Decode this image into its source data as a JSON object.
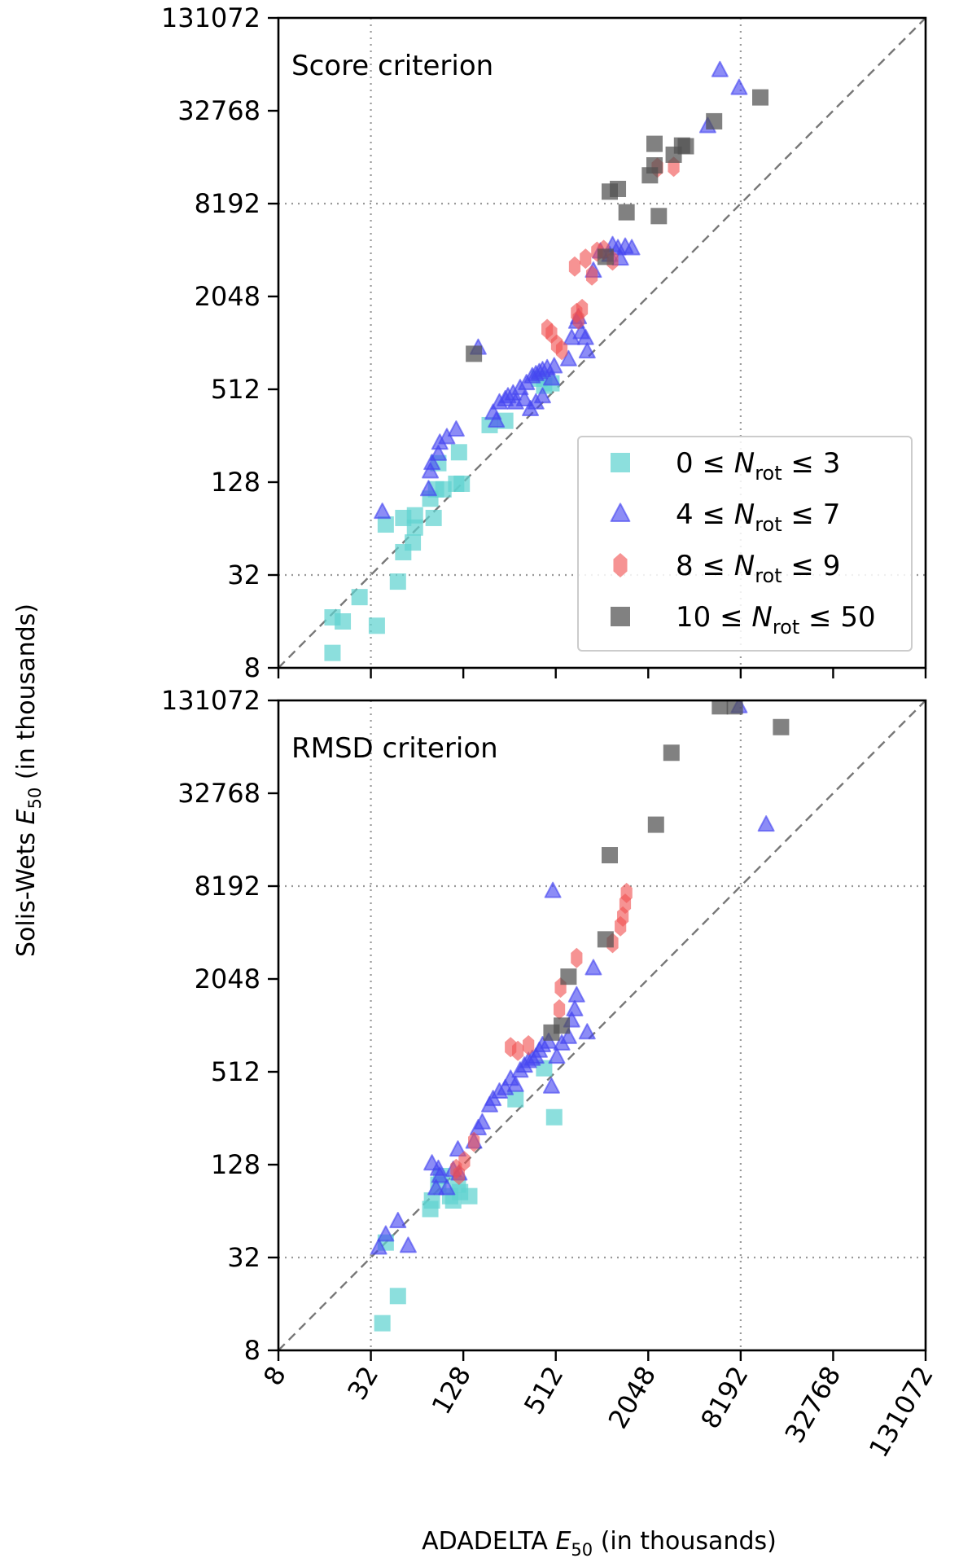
{
  "figure": {
    "ylabel": "Solis-Wets E50 (in thousands)",
    "ylabel_main": "Solis-Wets ",
    "ylabel_sym": "E",
    "ylabel_sub": "50",
    "ylabel_tail": " (in thousands)",
    "xlabel": "ADADELTA E50 (in thousands)",
    "xlabel_main": "ADADELTA ",
    "xlabel_sym": "E",
    "xlabel_sub": "50",
    "xlabel_tail": " (in thousands)"
  },
  "legend": {
    "entries": [
      {
        "label": "0 ≤ Nrot ≤ 3",
        "lo": "0",
        "hi": "3",
        "marker": "square",
        "color": "#5fd3d0"
      },
      {
        "label": "4 ≤ Nrot ≤ 7",
        "lo": "4",
        "hi": "7",
        "marker": "triangle",
        "color": "#4646f0"
      },
      {
        "label": "8 ≤ Nrot ≤ 9",
        "lo": "8",
        "hi": "9",
        "marker": "hexagon",
        "color": "#f05050"
      },
      {
        "label": "10 ≤ Nrot ≤ 50",
        "lo": "10",
        "hi": "50",
        "marker": "square",
        "color": "#505050"
      }
    ],
    "n_sym": "N",
    "n_sub": "rot",
    "le": "≤"
  },
  "chart_data": [
    {
      "type": "scatter",
      "title": "Score criterion",
      "xlabel": "ADADELTA E50 (in thousands)",
      "ylabel": "Solis-Wets E50 (in thousands)",
      "xscale": "log2",
      "yscale": "log2",
      "xlim": [
        8,
        131072
      ],
      "ylim": [
        8,
        131072
      ],
      "ticks": [
        "8",
        "32",
        "128",
        "512",
        "2048",
        "8192",
        "32768",
        "131072"
      ],
      "reference_lines": {
        "diagonal": "y = x",
        "vertical": [
          32,
          8192
        ],
        "horizontal": [
          32,
          8192
        ]
      },
      "legend_position": "lower-right",
      "series": [
        {
          "name": "0 ≤ Nrot ≤ 3",
          "color": "#5fd3d0",
          "marker": "square",
          "points": [
            [
              18,
              10
            ],
            [
              18,
              17
            ],
            [
              21,
              16
            ],
            [
              27,
              23
            ],
            [
              35,
              15
            ],
            [
              40,
              68
            ],
            [
              48,
              29
            ],
            [
              52,
              45
            ],
            [
              52,
              75
            ],
            [
              60,
              52
            ],
            [
              62,
              65
            ],
            [
              62,
              78
            ],
            [
              78,
              100
            ],
            [
              82,
              75
            ],
            [
              85,
              115
            ],
            [
              88,
              170
            ],
            [
              95,
              115
            ],
            [
              115,
              125
            ],
            [
              120,
              200
            ],
            [
              125,
              125
            ],
            [
              190,
              300
            ],
            [
              240,
              320
            ],
            [
              400,
              600
            ],
            [
              430,
              540
            ],
            [
              480,
              560
            ]
          ]
        },
        {
          "name": "4 ≤ Nrot ≤ 7",
          "color": "#4646f0",
          "marker": "triangle",
          "points": [
            [
              38,
              82
            ],
            [
              76,
              115
            ],
            [
              78,
              150
            ],
            [
              80,
              170
            ],
            [
              88,
              195
            ],
            [
              90,
              230
            ],
            [
              100,
              250
            ],
            [
              115,
              280
            ],
            [
              160,
              950
            ],
            [
              200,
              360
            ],
            [
              220,
              420
            ],
            [
              210,
              320
            ],
            [
              240,
              440
            ],
            [
              270,
              480
            ],
            [
              300,
              520
            ],
            [
              330,
              560
            ],
            [
              360,
              620
            ],
            [
              380,
              640
            ],
            [
              400,
              660
            ],
            [
              420,
              680
            ],
            [
              450,
              700
            ],
            [
              480,
              600
            ],
            [
              500,
              720
            ],
            [
              250,
              460
            ],
            [
              280,
              420
            ],
            [
              320,
              440
            ],
            [
              350,
              380
            ],
            [
              380,
              420
            ],
            [
              420,
              460
            ],
            [
              620,
              800
            ],
            [
              650,
              1100
            ],
            [
              700,
              1400
            ],
            [
              720,
              1500
            ],
            [
              750,
              1200
            ],
            [
              800,
              1100
            ],
            [
              820,
              900
            ],
            [
              900,
              3000
            ],
            [
              1000,
              4000
            ],
            [
              1150,
              3800
            ],
            [
              1200,
              4400
            ],
            [
              1300,
              4200
            ],
            [
              1350,
              3600
            ],
            [
              1450,
              4300
            ],
            [
              1600,
              4200
            ],
            [
              5000,
              26000
            ],
            [
              6000,
              60000
            ],
            [
              8000,
              46000
            ]
          ]
        },
        {
          "name": "8 ≤ Nrot ≤ 9",
          "color": "#f05050",
          "marker": "hexagon",
          "points": [
            [
              450,
              1260
            ],
            [
              480,
              1180
            ],
            [
              520,
              1000
            ],
            [
              560,
              920
            ],
            [
              680,
              3200
            ],
            [
              700,
              1600
            ],
            [
              720,
              1450
            ],
            [
              760,
              1700
            ],
            [
              800,
              3600
            ],
            [
              880,
              2800
            ],
            [
              950,
              4000
            ],
            [
              1050,
              4100
            ],
            [
              1200,
              3500
            ],
            [
              2350,
              14000
            ],
            [
              3000,
              14200
            ]
          ]
        },
        {
          "name": "10 ≤ Nrot ≤ 50",
          "color": "#505050",
          "marker": "square",
          "points": [
            [
              150,
              870
            ],
            [
              1080,
              3700
            ],
            [
              1150,
              9800
            ],
            [
              1300,
              10200
            ],
            [
              1480,
              7200
            ],
            [
              2100,
              12500
            ],
            [
              2250,
              20000
            ],
            [
              2250,
              14500
            ],
            [
              2400,
              6800
            ],
            [
              3000,
              17000
            ],
            [
              3400,
              19500
            ],
            [
              3600,
              19300
            ],
            [
              5500,
              28000
            ],
            [
              11000,
              40000
            ]
          ]
        }
      ]
    },
    {
      "type": "scatter",
      "title": "RMSD criterion",
      "xlabel": "ADADELTA E50 (in thousands)",
      "ylabel": "Solis-Wets E50 (in thousands)",
      "xscale": "log2",
      "yscale": "log2",
      "xlim": [
        8,
        131072
      ],
      "ylim": [
        8,
        131072
      ],
      "ticks": [
        "8",
        "32",
        "128",
        "512",
        "2048",
        "8192",
        "32768",
        "131072"
      ],
      "reference_lines": {
        "diagonal": "y = x",
        "vertical": [
          32,
          8192
        ],
        "horizontal": [
          32,
          8192
        ]
      },
      "series": [
        {
          "name": "0 ≤ Nrot ≤ 3",
          "color": "#5fd3d0",
          "marker": "square",
          "points": [
            [
              38,
              12
            ],
            [
              48,
              18
            ],
            [
              40,
              40
            ],
            [
              78,
              66
            ],
            [
              80,
              75
            ],
            [
              88,
              95
            ],
            [
              92,
              108
            ],
            [
              105,
              80
            ],
            [
              110,
              75
            ],
            [
              118,
              95
            ],
            [
              122,
              85
            ],
            [
              140,
              80
            ],
            [
              280,
              340
            ],
            [
              430,
              540
            ],
            [
              500,
              260
            ]
          ]
        },
        {
          "name": "4 ≤ Nrot ≤ 7",
          "color": "#4646f0",
          "marker": "triangle",
          "points": [
            [
              36,
              37
            ],
            [
              40,
              45
            ],
            [
              48,
              55
            ],
            [
              56,
              38
            ],
            [
              80,
              130
            ],
            [
              85,
              90
            ],
            [
              88,
              120
            ],
            [
              90,
              108
            ],
            [
              100,
              90
            ],
            [
              110,
              118
            ],
            [
              118,
              160
            ],
            [
              120,
              112
            ],
            [
              150,
              180
            ],
            [
              160,
              220
            ],
            [
              170,
              240
            ],
            [
              190,
              310
            ],
            [
              200,
              340
            ],
            [
              220,
              380
            ],
            [
              240,
              400
            ],
            [
              260,
              460
            ],
            [
              280,
              420
            ],
            [
              300,
              520
            ],
            [
              320,
              560
            ],
            [
              340,
              600
            ],
            [
              360,
              620
            ],
            [
              380,
              640
            ],
            [
              400,
              700
            ],
            [
              420,
              760
            ],
            [
              460,
              800
            ],
            [
              480,
              410
            ],
            [
              490,
              7600
            ],
            [
              520,
              640
            ],
            [
              560,
              780
            ],
            [
              620,
              860
            ],
            [
              650,
              1100
            ],
            [
              680,
              1300
            ],
            [
              700,
              1600
            ],
            [
              820,
              920
            ],
            [
              900,
              2400
            ],
            [
              12000,
              20500
            ],
            [
              8000,
              120000
            ]
          ]
        },
        {
          "name": "8 ≤ Nrot ≤ 9",
          "color": "#f05050",
          "marker": "hexagon",
          "points": [
            [
              115,
              120
            ],
            [
              120,
              110
            ],
            [
              130,
              135
            ],
            [
              150,
              180
            ],
            [
              260,
              740
            ],
            [
              290,
              700
            ],
            [
              340,
              760
            ],
            [
              540,
              1300
            ],
            [
              550,
              1800
            ],
            [
              700,
              2800
            ],
            [
              1200,
              3500
            ],
            [
              1350,
              4500
            ],
            [
              1400,
              5200
            ],
            [
              1450,
              6300
            ],
            [
              1480,
              7400
            ]
          ]
        },
        {
          "name": "10 ≤ Nrot ≤ 50",
          "color": "#505050",
          "marker": "square",
          "points": [
            [
              480,
              920
            ],
            [
              560,
              1020
            ],
            [
              620,
              2120
            ],
            [
              1080,
              3700
            ],
            [
              1150,
              13000
            ],
            [
              2300,
              20500
            ],
            [
              2900,
              60000
            ],
            [
              6000,
              120000
            ],
            [
              7500,
              120000
            ],
            [
              15000,
              88000
            ]
          ]
        }
      ]
    }
  ]
}
